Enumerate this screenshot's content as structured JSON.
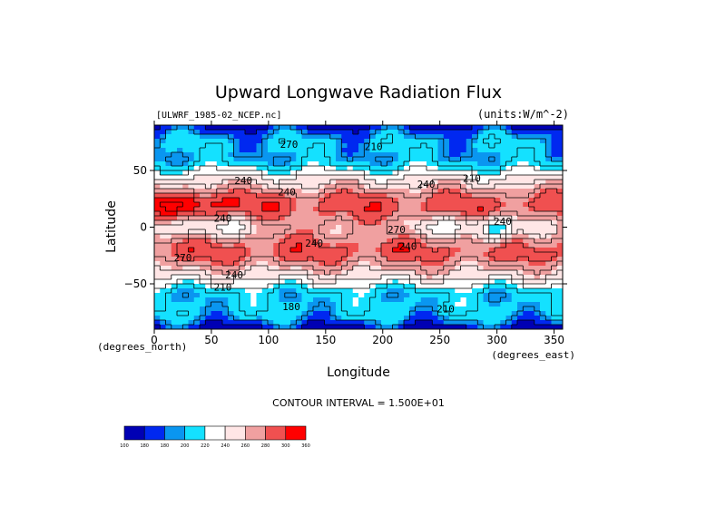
{
  "chart_data": {
    "type": "heatmap",
    "title": "Upward Longwave Radiation Flux",
    "subtitle_left": "[ULWRF_1985-02_NCEP.nc]",
    "subtitle_right": "(units:W/m^-2)",
    "xlabel": "Longitude",
    "ylabel": "Latitude",
    "x_unit_note": "(degrees_east)",
    "y_unit_note": "(degrees_north)",
    "xlim": [
      0,
      357.5
    ],
    "ylim": [
      -90,
      90
    ],
    "x_ticks": [
      0,
      50,
      100,
      150,
      200,
      250,
      300,
      350
    ],
    "y_ticks": [
      -50,
      0,
      50
    ],
    "contour_interval_text": "CONTOUR INTERVAL = 1.500E+01",
    "contour_labels": [
      {
        "text": "270",
        "lon": 118,
        "lat": 70
      },
      {
        "text": "210",
        "lon": 192,
        "lat": 68
      },
      {
        "text": "240",
        "lon": 78,
        "lat": 38
      },
      {
        "text": "240",
        "lon": 116,
        "lat": 28
      },
      {
        "text": "240",
        "lon": 238,
        "lat": 35
      },
      {
        "text": "210",
        "lon": 278,
        "lat": 40
      },
      {
        "text": "240",
        "lon": 60,
        "lat": 5
      },
      {
        "text": "240",
        "lon": 305,
        "lat": 2
      },
      {
        "text": "270",
        "lon": 212,
        "lat": -5
      },
      {
        "text": "240",
        "lon": 222,
        "lat": -20
      },
      {
        "text": "240",
        "lon": 140,
        "lat": -17
      },
      {
        "text": "270",
        "lon": 25,
        "lat": -30
      },
      {
        "text": "240",
        "lon": 70,
        "lat": -45
      },
      {
        "text": "210",
        "lon": 60,
        "lat": -56
      },
      {
        "text": "180",
        "lon": 120,
        "lat": -73
      },
      {
        "text": "210",
        "lon": 255,
        "lat": -75
      }
    ],
    "colorbar": {
      "levels": [
        "100",
        "180",
        "180",
        "200",
        "220",
        "240",
        "260",
        "280",
        "300",
        "360"
      ],
      "colors": [
        "#0000b4",
        "#0028f0",
        "#0a96f0",
        "#14e1ff",
        "#ffffff",
        "#ffe6e6",
        "#f0a0a0",
        "#f05050",
        "#ff0000"
      ]
    }
  }
}
